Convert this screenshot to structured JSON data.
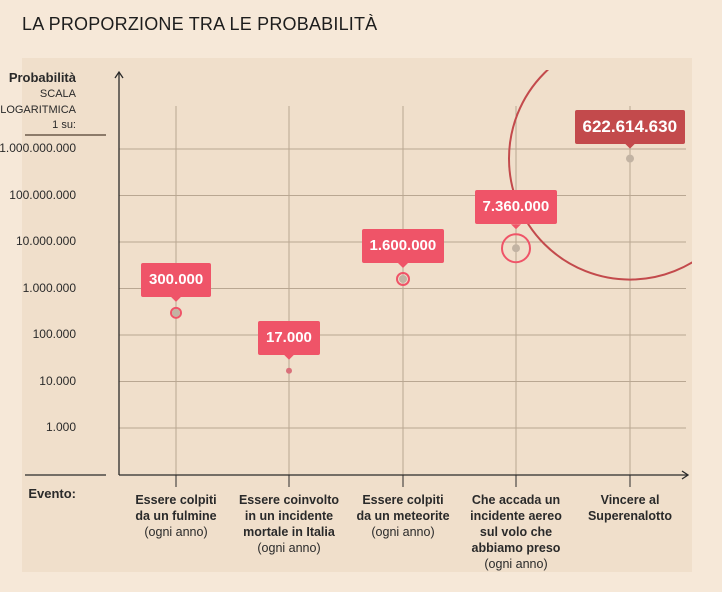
{
  "title": "LA PROPORZIONE TRA LE PROBABILITÀ",
  "chart_data": {
    "type": "scatter",
    "title": "LA PROPORZIONE TRA LE PROBABILITÀ",
    "ylabel": "Probabilità",
    "ylabel_sub": [
      "SCALA",
      "LOGARITMICA",
      "1 su:"
    ],
    "xlabel": "Evento:",
    "yscale": "log",
    "ylim": [
      100,
      10000000000
    ],
    "yticks": [
      1000,
      10000,
      100000,
      1000000,
      10000000,
      100000000,
      1000000000
    ],
    "ytick_labels": [
      "1.000",
      "10.000",
      "100.000",
      "1.000.000",
      "10.000.000",
      "100.000.000",
      "1.000.000.000"
    ],
    "grid": true,
    "categories": [
      {
        "bold": [
          "Essere colpiti",
          "da un fulmine"
        ],
        "note": "(ogni anno)"
      },
      {
        "bold": [
          "Essere coinvolto",
          "in un incidente",
          "mortale in Italia"
        ],
        "note": "(ogni anno)"
      },
      {
        "bold": [
          "Essere colpiti",
          "da un meteorite"
        ],
        "note": "(ogni anno)"
      },
      {
        "bold": [
          "Che accada un",
          "incidente aereo",
          "sul volo che",
          "abbiamo preso"
        ],
        "note": "(ogni anno)"
      },
      {
        "bold": [
          "Vincere al",
          "Superenalotto"
        ],
        "note": ""
      }
    ],
    "values": [
      300000,
      17000,
      1600000,
      7360000,
      622614630
    ],
    "value_labels": [
      "300.000",
      "17.000",
      "1.600.000",
      "7.360.000",
      "622.614.630"
    ],
    "colors": {
      "highlight": "#ef5468",
      "jackpot": "#c34a4c",
      "grid": "#b9a792",
      "axis": "#2b2b2b"
    }
  }
}
